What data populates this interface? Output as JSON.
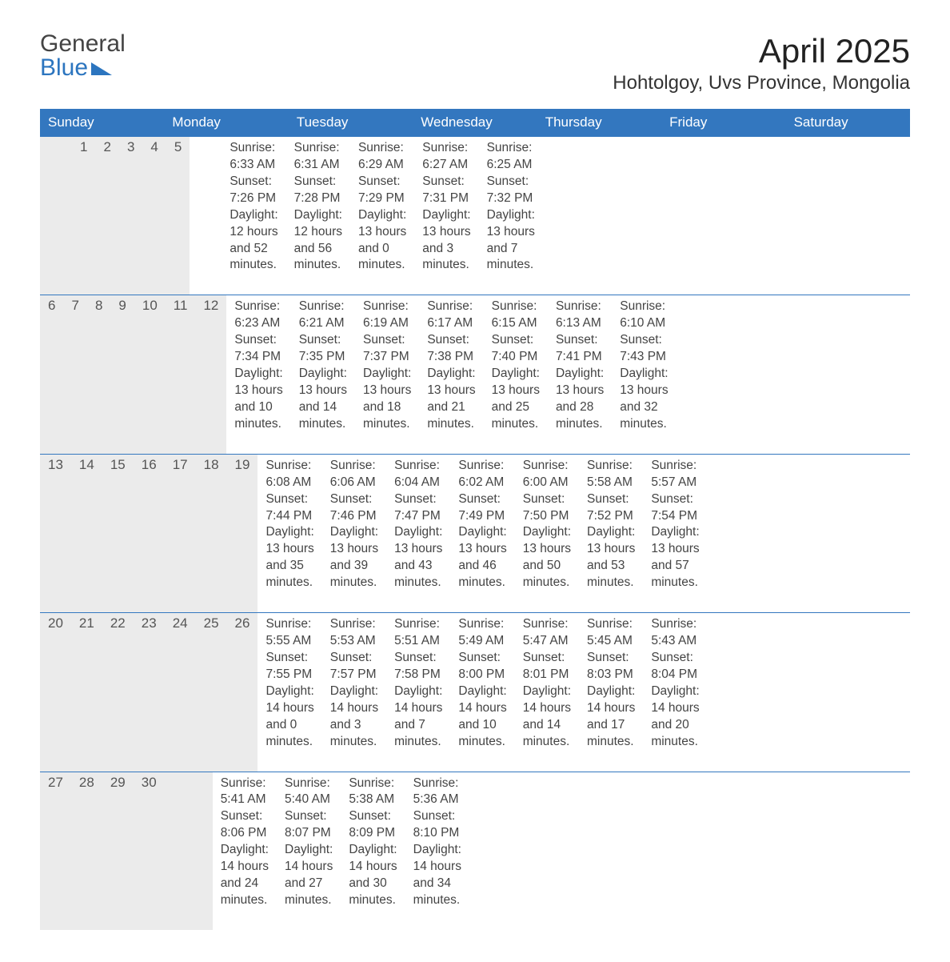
{
  "logo": {
    "line1": "General",
    "line2": "Blue"
  },
  "title": "April 2025",
  "location": "Hohtolgoy, Uvs Province, Mongolia",
  "colors": {
    "header_bg": "#3377bf",
    "header_text": "#ffffff",
    "daynum_bg": "#ebebeb",
    "text": "#444444",
    "logo_blue": "#2c75bf"
  },
  "day_names": [
    "Sunday",
    "Monday",
    "Tuesday",
    "Wednesday",
    "Thursday",
    "Friday",
    "Saturday"
  ],
  "weeks": [
    [
      {
        "num": "",
        "sunrise": "",
        "sunset": "",
        "daylight1": "",
        "daylight2": ""
      },
      {
        "num": "",
        "sunrise": "",
        "sunset": "",
        "daylight1": "",
        "daylight2": ""
      },
      {
        "num": "1",
        "sunrise": "Sunrise: 6:33 AM",
        "sunset": "Sunset: 7:26 PM",
        "daylight1": "Daylight: 12 hours",
        "daylight2": "and 52 minutes."
      },
      {
        "num": "2",
        "sunrise": "Sunrise: 6:31 AM",
        "sunset": "Sunset: 7:28 PM",
        "daylight1": "Daylight: 12 hours",
        "daylight2": "and 56 minutes."
      },
      {
        "num": "3",
        "sunrise": "Sunrise: 6:29 AM",
        "sunset": "Sunset: 7:29 PM",
        "daylight1": "Daylight: 13 hours",
        "daylight2": "and 0 minutes."
      },
      {
        "num": "4",
        "sunrise": "Sunrise: 6:27 AM",
        "sunset": "Sunset: 7:31 PM",
        "daylight1": "Daylight: 13 hours",
        "daylight2": "and 3 minutes."
      },
      {
        "num": "5",
        "sunrise": "Sunrise: 6:25 AM",
        "sunset": "Sunset: 7:32 PM",
        "daylight1": "Daylight: 13 hours",
        "daylight2": "and 7 minutes."
      }
    ],
    [
      {
        "num": "6",
        "sunrise": "Sunrise: 6:23 AM",
        "sunset": "Sunset: 7:34 PM",
        "daylight1": "Daylight: 13 hours",
        "daylight2": "and 10 minutes."
      },
      {
        "num": "7",
        "sunrise": "Sunrise: 6:21 AM",
        "sunset": "Sunset: 7:35 PM",
        "daylight1": "Daylight: 13 hours",
        "daylight2": "and 14 minutes."
      },
      {
        "num": "8",
        "sunrise": "Sunrise: 6:19 AM",
        "sunset": "Sunset: 7:37 PM",
        "daylight1": "Daylight: 13 hours",
        "daylight2": "and 18 minutes."
      },
      {
        "num": "9",
        "sunrise": "Sunrise: 6:17 AM",
        "sunset": "Sunset: 7:38 PM",
        "daylight1": "Daylight: 13 hours",
        "daylight2": "and 21 minutes."
      },
      {
        "num": "10",
        "sunrise": "Sunrise: 6:15 AM",
        "sunset": "Sunset: 7:40 PM",
        "daylight1": "Daylight: 13 hours",
        "daylight2": "and 25 minutes."
      },
      {
        "num": "11",
        "sunrise": "Sunrise: 6:13 AM",
        "sunset": "Sunset: 7:41 PM",
        "daylight1": "Daylight: 13 hours",
        "daylight2": "and 28 minutes."
      },
      {
        "num": "12",
        "sunrise": "Sunrise: 6:10 AM",
        "sunset": "Sunset: 7:43 PM",
        "daylight1": "Daylight: 13 hours",
        "daylight2": "and 32 minutes."
      }
    ],
    [
      {
        "num": "13",
        "sunrise": "Sunrise: 6:08 AM",
        "sunset": "Sunset: 7:44 PM",
        "daylight1": "Daylight: 13 hours",
        "daylight2": "and 35 minutes."
      },
      {
        "num": "14",
        "sunrise": "Sunrise: 6:06 AM",
        "sunset": "Sunset: 7:46 PM",
        "daylight1": "Daylight: 13 hours",
        "daylight2": "and 39 minutes."
      },
      {
        "num": "15",
        "sunrise": "Sunrise: 6:04 AM",
        "sunset": "Sunset: 7:47 PM",
        "daylight1": "Daylight: 13 hours",
        "daylight2": "and 43 minutes."
      },
      {
        "num": "16",
        "sunrise": "Sunrise: 6:02 AM",
        "sunset": "Sunset: 7:49 PM",
        "daylight1": "Daylight: 13 hours",
        "daylight2": "and 46 minutes."
      },
      {
        "num": "17",
        "sunrise": "Sunrise: 6:00 AM",
        "sunset": "Sunset: 7:50 PM",
        "daylight1": "Daylight: 13 hours",
        "daylight2": "and 50 minutes."
      },
      {
        "num": "18",
        "sunrise": "Sunrise: 5:58 AM",
        "sunset": "Sunset: 7:52 PM",
        "daylight1": "Daylight: 13 hours",
        "daylight2": "and 53 minutes."
      },
      {
        "num": "19",
        "sunrise": "Sunrise: 5:57 AM",
        "sunset": "Sunset: 7:54 PM",
        "daylight1": "Daylight: 13 hours",
        "daylight2": "and 57 minutes."
      }
    ],
    [
      {
        "num": "20",
        "sunrise": "Sunrise: 5:55 AM",
        "sunset": "Sunset: 7:55 PM",
        "daylight1": "Daylight: 14 hours",
        "daylight2": "and 0 minutes."
      },
      {
        "num": "21",
        "sunrise": "Sunrise: 5:53 AM",
        "sunset": "Sunset: 7:57 PM",
        "daylight1": "Daylight: 14 hours",
        "daylight2": "and 3 minutes."
      },
      {
        "num": "22",
        "sunrise": "Sunrise: 5:51 AM",
        "sunset": "Sunset: 7:58 PM",
        "daylight1": "Daylight: 14 hours",
        "daylight2": "and 7 minutes."
      },
      {
        "num": "23",
        "sunrise": "Sunrise: 5:49 AM",
        "sunset": "Sunset: 8:00 PM",
        "daylight1": "Daylight: 14 hours",
        "daylight2": "and 10 minutes."
      },
      {
        "num": "24",
        "sunrise": "Sunrise: 5:47 AM",
        "sunset": "Sunset: 8:01 PM",
        "daylight1": "Daylight: 14 hours",
        "daylight2": "and 14 minutes."
      },
      {
        "num": "25",
        "sunrise": "Sunrise: 5:45 AM",
        "sunset": "Sunset: 8:03 PM",
        "daylight1": "Daylight: 14 hours",
        "daylight2": "and 17 minutes."
      },
      {
        "num": "26",
        "sunrise": "Sunrise: 5:43 AM",
        "sunset": "Sunset: 8:04 PM",
        "daylight1": "Daylight: 14 hours",
        "daylight2": "and 20 minutes."
      }
    ],
    [
      {
        "num": "27",
        "sunrise": "Sunrise: 5:41 AM",
        "sunset": "Sunset: 8:06 PM",
        "daylight1": "Daylight: 14 hours",
        "daylight2": "and 24 minutes."
      },
      {
        "num": "28",
        "sunrise": "Sunrise: 5:40 AM",
        "sunset": "Sunset: 8:07 PM",
        "daylight1": "Daylight: 14 hours",
        "daylight2": "and 27 minutes."
      },
      {
        "num": "29",
        "sunrise": "Sunrise: 5:38 AM",
        "sunset": "Sunset: 8:09 PM",
        "daylight1": "Daylight: 14 hours",
        "daylight2": "and 30 minutes."
      },
      {
        "num": "30",
        "sunrise": "Sunrise: 5:36 AM",
        "sunset": "Sunset: 8:10 PM",
        "daylight1": "Daylight: 14 hours",
        "daylight2": "and 34 minutes."
      },
      {
        "num": "",
        "sunrise": "",
        "sunset": "",
        "daylight1": "",
        "daylight2": ""
      },
      {
        "num": "",
        "sunrise": "",
        "sunset": "",
        "daylight1": "",
        "daylight2": ""
      },
      {
        "num": "",
        "sunrise": "",
        "sunset": "",
        "daylight1": "",
        "daylight2": ""
      }
    ]
  ]
}
